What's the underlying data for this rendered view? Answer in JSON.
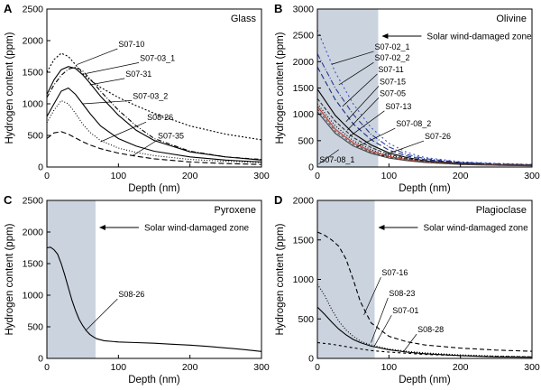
{
  "chart_data": [
    {
      "panel": "A",
      "title": "Glass",
      "type": "line",
      "xlabel": "Depth (nm)",
      "ylabel": "Hydrogen content (ppm)",
      "xlim": [
        0,
        300
      ],
      "ylim": [
        0,
        2500
      ],
      "xticks": [
        0,
        100,
        200,
        300
      ],
      "yticks": [
        0,
        500,
        1000,
        1500,
        2000,
        2500
      ],
      "damaged_zone": null,
      "series": [
        {
          "name": "S07-10",
          "dash": "2,2",
          "color": "#000000",
          "x": [
            0,
            10,
            20,
            30,
            40,
            50,
            60,
            75,
            100,
            125,
            150,
            200,
            250,
            300
          ],
          "y": [
            1500,
            1700,
            1800,
            1750,
            1620,
            1480,
            1380,
            1260,
            1100,
            970,
            850,
            650,
            520,
            430
          ]
        },
        {
          "name": "S07-03_1",
          "dash": "5,2,1,2",
          "color": "#000000",
          "x": [
            0,
            10,
            20,
            30,
            40,
            50,
            60,
            75,
            100,
            125,
            150,
            200,
            250,
            300
          ],
          "y": [
            1100,
            1300,
            1450,
            1550,
            1580,
            1520,
            1400,
            1200,
            900,
            650,
            450,
            250,
            160,
            120
          ]
        },
        {
          "name": "S07-31",
          "dash": "",
          "color": "#000000",
          "x": [
            0,
            10,
            20,
            30,
            40,
            50,
            60,
            75,
            100,
            125,
            150,
            200,
            250,
            300
          ],
          "y": [
            1150,
            1380,
            1540,
            1590,
            1560,
            1460,
            1330,
            1120,
            820,
            580,
            420,
            240,
            160,
            110
          ]
        },
        {
          "name": "S07-03_2",
          "dash": "",
          "color": "#000000",
          "x": [
            0,
            10,
            20,
            30,
            40,
            50,
            60,
            75,
            100,
            125,
            150,
            200,
            250,
            300
          ],
          "y": [
            800,
            1000,
            1200,
            1250,
            1150,
            1000,
            850,
            650,
            450,
            330,
            250,
            160,
            110,
            80
          ]
        },
        {
          "name": "S08-26",
          "dash": "1,2",
          "color": "#000000",
          "x": [
            0,
            10,
            20,
            30,
            40,
            50,
            60,
            75,
            100,
            125,
            150,
            200,
            250,
            300
          ],
          "y": [
            700,
            900,
            1050,
            1000,
            850,
            680,
            550,
            420,
            300,
            230,
            180,
            120,
            90,
            70
          ]
        },
        {
          "name": "S07-35",
          "dash": "6,3",
          "color": "#000000",
          "x": [
            0,
            10,
            20,
            30,
            40,
            50,
            60,
            75,
            100,
            125,
            150,
            200,
            250,
            300
          ],
          "y": [
            450,
            540,
            560,
            520,
            460,
            400,
            350,
            290,
            220,
            170,
            130,
            80,
            55,
            40
          ]
        }
      ],
      "annotations": [
        {
          "text": "S07-10",
          "x": 100,
          "y": 1900,
          "to": [
            42,
            1620
          ]
        },
        {
          "text": "S07-03_1",
          "x": 130,
          "y": 1680,
          "to": [
            55,
            1480
          ]
        },
        {
          "text": "S07-31",
          "x": 110,
          "y": 1430,
          "to": [
            60,
            1300
          ]
        },
        {
          "text": "S07-03_2",
          "x": 120,
          "y": 1080,
          "to": [
            50,
            1000
          ]
        },
        {
          "text": "S08-26",
          "x": 140,
          "y": 740,
          "to": [
            75,
            400
          ]
        },
        {
          "text": "S07-35",
          "x": 155,
          "y": 450,
          "to": [
            120,
            180
          ]
        }
      ]
    },
    {
      "panel": "B",
      "title": "Olivine",
      "type": "line",
      "xlabel": "Depth (nm)",
      "ylabel": "Hydrogen content (ppm)",
      "xlim": [
        0,
        300
      ],
      "ylim": [
        0,
        3000
      ],
      "xticks": [
        0,
        100,
        200,
        300
      ],
      "yticks": [
        0,
        500,
        1000,
        1500,
        2000,
        2500,
        3000
      ],
      "damaged_zone": {
        "x0": 0,
        "x1": 85,
        "label": "Solar wind-damaged zone"
      },
      "series": [
        {
          "name": "S07-02_1",
          "dash": "2,3",
          "color": "#3a56c8",
          "x": [
            0,
            25,
            50,
            75,
            100,
            125,
            150,
            200,
            250,
            300
          ],
          "y": [
            2600,
            1800,
            1200,
            750,
            450,
            280,
            180,
            100,
            70,
            50
          ]
        },
        {
          "name": "S07-02_2",
          "dash": "6,2,1,2",
          "color": "#2a3a9a",
          "x": [
            0,
            25,
            50,
            75,
            100,
            125,
            150,
            200,
            250,
            300
          ],
          "y": [
            2150,
            1500,
            1000,
            620,
            380,
            240,
            160,
            90,
            60,
            45
          ]
        },
        {
          "name": "S07-11",
          "dash": "6,3",
          "color": "#1c2c80",
          "x": [
            0,
            25,
            50,
            75,
            100,
            125,
            150,
            200,
            250,
            300
          ],
          "y": [
            1900,
            1280,
            820,
            520,
            320,
            210,
            140,
            80,
            55,
            40
          ]
        },
        {
          "name": "S07-15",
          "dash": "",
          "color": "#000000",
          "x": [
            0,
            25,
            50,
            75,
            100,
            125,
            150,
            200,
            250,
            300
          ],
          "y": [
            1480,
            980,
            640,
            420,
            270,
            180,
            120,
            70,
            45,
            35
          ]
        },
        {
          "name": "S07-05",
          "dash": "4,2",
          "color": "#333333",
          "x": [
            0,
            25,
            50,
            75,
            100,
            125,
            150,
            200,
            250,
            300
          ],
          "y": [
            1300,
            870,
            560,
            370,
            240,
            160,
            110,
            65,
            45,
            35
          ]
        },
        {
          "name": "S07-13",
          "dash": "1,2",
          "color": "#000000",
          "x": [
            0,
            25,
            50,
            75,
            100,
            125,
            150,
            200,
            250,
            300
          ],
          "y": [
            1200,
            780,
            500,
            330,
            220,
            150,
            100,
            60,
            40,
            30
          ]
        },
        {
          "name": "S07-08_2",
          "dash": "",
          "color": "#c0392b",
          "x": [
            0,
            25,
            50,
            75,
            100,
            125,
            150,
            200,
            250,
            300
          ],
          "y": [
            1150,
            720,
            460,
            300,
            200,
            140,
            95,
            55,
            38,
            28
          ]
        },
        {
          "name": "S07-26",
          "dash": "3,2",
          "color": "#555555",
          "x": [
            0,
            25,
            50,
            75,
            100,
            125,
            150,
            200,
            250,
            300
          ],
          "y": [
            1100,
            680,
            430,
            280,
            185,
            130,
            90,
            50,
            35,
            25
          ]
        },
        {
          "name": "S07-08_1",
          "dash": "",
          "color": "#444444",
          "x": [
            0,
            25,
            50,
            75,
            100,
            125,
            150,
            200,
            250,
            300
          ],
          "y": [
            1050,
            640,
            400,
            260,
            170,
            120,
            85,
            48,
            32,
            22
          ]
        }
      ],
      "annotations": [
        {
          "text": "S07-02_1",
          "x": 80,
          "y": 2230,
          "to": [
            20,
            1950
          ]
        },
        {
          "text": "S07-02_2",
          "x": 80,
          "y": 2020,
          "to": [
            30,
            1560
          ]
        },
        {
          "text": "S07-11",
          "x": 85,
          "y": 1800,
          "to": [
            35,
            1150
          ]
        },
        {
          "text": "S07-15",
          "x": 87,
          "y": 1570,
          "to": [
            40,
            860
          ]
        },
        {
          "text": "S07-05",
          "x": 87,
          "y": 1350,
          "to": [
            42,
            700
          ]
        },
        {
          "text": "S07-13",
          "x": 95,
          "y": 1100,
          "to": [
            45,
            580
          ]
        },
        {
          "text": "S07-08_2",
          "x": 110,
          "y": 770,
          "to": [
            55,
            380
          ]
        },
        {
          "text": "S07-26",
          "x": 150,
          "y": 530,
          "to": [
            90,
            210
          ]
        },
        {
          "text": "S07-08_1",
          "x": 3,
          "y": 90,
          "to": [
            30,
            330
          ]
        }
      ]
    },
    {
      "panel": "C",
      "title": "Pyroxene",
      "type": "line",
      "xlabel": "Depth (nm)",
      "ylabel": "Hydrogen content (ppm)",
      "xlim": [
        0,
        300
      ],
      "ylim": [
        0,
        2500
      ],
      "xticks": [
        0,
        100,
        200,
        300
      ],
      "yticks": [
        0,
        500,
        1000,
        1500,
        2000,
        2500
      ],
      "damaged_zone": {
        "x0": 0,
        "x1": 68,
        "label": "Solar wind-damaged zone"
      },
      "series": [
        {
          "name": "S08-26",
          "dash": "",
          "color": "#000000",
          "x": [
            0,
            5,
            10,
            15,
            20,
            25,
            30,
            35,
            40,
            45,
            50,
            55,
            60,
            65,
            70,
            80,
            100,
            125,
            150,
            175,
            200,
            225,
            250,
            275,
            300
          ],
          "y": [
            1750,
            1760,
            1720,
            1650,
            1500,
            1320,
            1120,
            920,
            760,
            620,
            520,
            440,
            380,
            340,
            310,
            280,
            260,
            250,
            240,
            225,
            210,
            190,
            165,
            140,
            110
          ]
        }
      ],
      "annotations": [
        {
          "text": "S08-26",
          "x": 100,
          "y": 970,
          "to": [
            55,
            450
          ]
        }
      ]
    },
    {
      "panel": "D",
      "title": "Plagioclase",
      "type": "line",
      "xlabel": "Depth (nm)",
      "ylabel": "Hydrogen content (ppm)",
      "xlim": [
        0,
        300
      ],
      "ylim": [
        0,
        2000
      ],
      "xticks": [
        0,
        100,
        200,
        300
      ],
      "yticks": [
        0,
        500,
        1000,
        1500,
        2000
      ],
      "damaged_zone": {
        "x0": 0,
        "x1": 80,
        "label": "Solar wind-damaged zone"
      },
      "series": [
        {
          "name": "S07-16",
          "dash": "5,3",
          "color": "#000000",
          "x": [
            0,
            10,
            20,
            30,
            40,
            50,
            60,
            75,
            100,
            125,
            150,
            200,
            250,
            300
          ],
          "y": [
            1600,
            1560,
            1500,
            1420,
            1260,
            1000,
            720,
            450,
            280,
            210,
            170,
            130,
            105,
            90
          ]
        },
        {
          "name": "S08-23",
          "dash": "1,2",
          "color": "#000000",
          "x": [
            0,
            10,
            20,
            30,
            40,
            50,
            60,
            75,
            100,
            125,
            150,
            200,
            250,
            300
          ],
          "y": [
            940,
            800,
            620,
            470,
            360,
            280,
            220,
            170,
            120,
            90,
            70,
            45,
            30,
            20
          ]
        },
        {
          "name": "S07-01",
          "dash": "",
          "color": "#000000",
          "x": [
            0,
            10,
            20,
            30,
            40,
            50,
            60,
            75,
            100,
            125,
            150,
            200,
            250,
            300
          ],
          "y": [
            650,
            560,
            460,
            370,
            300,
            240,
            200,
            155,
            110,
            80,
            60,
            35,
            20,
            15
          ]
        },
        {
          "name": "S08-28",
          "dash": "3,3",
          "color": "#000000",
          "x": [
            0,
            10,
            20,
            30,
            40,
            50,
            60,
            75,
            100,
            125,
            150,
            200,
            250,
            300
          ],
          "y": [
            200,
            190,
            180,
            165,
            150,
            135,
            120,
            100,
            80,
            65,
            50,
            35,
            25,
            20
          ]
        }
      ],
      "annotations": [
        {
          "text": "S07-16",
          "x": 90,
          "y": 1050,
          "to": [
            65,
            550
          ]
        },
        {
          "text": "S08-23",
          "x": 100,
          "y": 790,
          "to": [
            75,
            200
          ]
        },
        {
          "text": "S07-01",
          "x": 105,
          "y": 570,
          "to": [
            80,
            160
          ]
        },
        {
          "text": "S08-28",
          "x": 140,
          "y": 330,
          "to": [
            120,
            80
          ]
        }
      ]
    }
  ]
}
